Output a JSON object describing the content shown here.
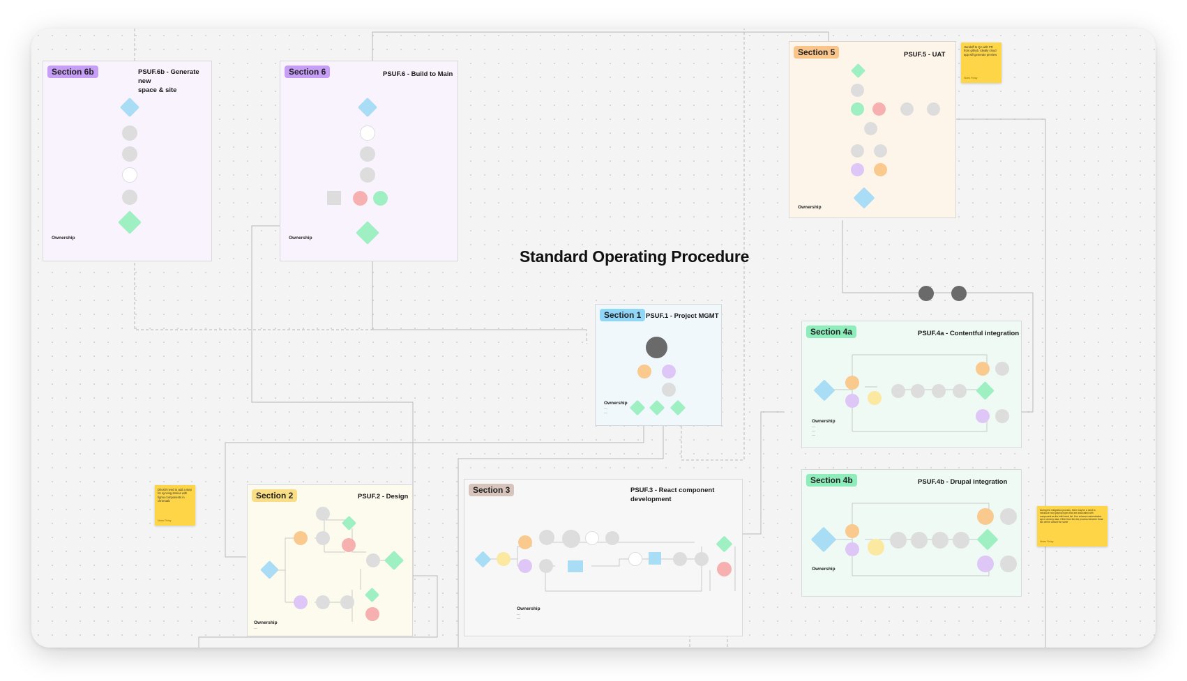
{
  "page_title": "Standard Operating Procedure",
  "owner_label": "Ownership",
  "sections": {
    "s6b": {
      "tag": "Section 6b",
      "title_l1": "PSUF.6b  - Generate new",
      "title_l2": "space & site"
    },
    "s6": {
      "tag": "Section 6",
      "title": "PSUF.6  - Build to Main"
    },
    "s5": {
      "tag": "Section 5",
      "title": "PSUF.5 - UAT"
    },
    "s1": {
      "tag": "Section 1",
      "title": "PSUF.1 - Project MGMT"
    },
    "s4a": {
      "tag": "Section 4a",
      "title": "PSUF.4a - Contentful integration"
    },
    "s4b": {
      "tag": "Section 4b",
      "title": "PSUF.4b - Drupal integration"
    },
    "s2": {
      "tag": "Section 2",
      "title": "PSUF.2 - Design"
    },
    "s3": {
      "tag": "Section 3",
      "title": "PSUF.3 - React component development"
    }
  },
  "stickies": {
    "uat": {
      "text": "Handoff to QA with PR from github. Ideally cloud app will generate preview",
      "author": "Notes Finlay"
    },
    "design": {
      "text": "Dhoshi need to add a step for syncing stories with figma components in chromatic",
      "author": "Notes Finlay"
    },
    "integration": {
      "text": "During the integration process, there may be a need to introduce new graphql types that are associated with component as the build word list. Use schema customization api or dummy data. Other than this the process between these two will be almost the same",
      "author": "Notes Finlay"
    }
  },
  "colors": {
    "blue": "#a9dcf5",
    "green": "#9ef0c3",
    "orange": "#f9c98e",
    "red": "#f7b0b0",
    "purple": "#dec7f7",
    "yellow": "#fbe9a1",
    "gray": "#dddddd",
    "dark": "#6a6a6a",
    "tag_purple": "#c69ef5",
    "tag_orange": "#f9c58a",
    "tag_blue": "#8fd6f7",
    "tag_green": "#8fecbb",
    "tag_yellow": "#f9de85",
    "tag_brown": "#d7c4bd",
    "sticky": "#fdd547"
  }
}
